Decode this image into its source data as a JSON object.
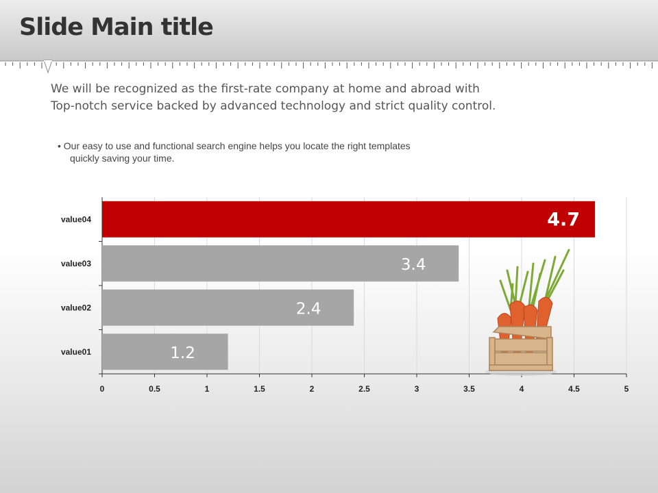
{
  "slide": {
    "title": "Slide Main title",
    "intro_lines": [
      "We will be recognized as the first-rate company at home and abroad with",
      "Top-notch service backed by advanced technology and strict quality control."
    ],
    "bullet_lines": [
      "• Our easy to use and functional  search engine helps you locate the right templates",
      "quickly saving your time."
    ]
  },
  "colors": {
    "highlight": "#c00000",
    "bar": "#a6a6a6"
  },
  "chart_data": {
    "type": "bar",
    "orientation": "horizontal",
    "categories": [
      "value01",
      "value02",
      "value03",
      "value04"
    ],
    "values": [
      1.2,
      2.4,
      3.4,
      4.7
    ],
    "data_labels": [
      "1.2",
      "2.4",
      "3.4",
      "4.7"
    ],
    "highlight_category": "value04",
    "xlim": [
      0,
      5
    ],
    "x_ticks": [
      "0",
      "0.5",
      "1",
      "1.5",
      "2",
      "2.5",
      "3",
      "3.5",
      "4",
      "4.5",
      "5"
    ],
    "grid": true,
    "legend": "none"
  }
}
